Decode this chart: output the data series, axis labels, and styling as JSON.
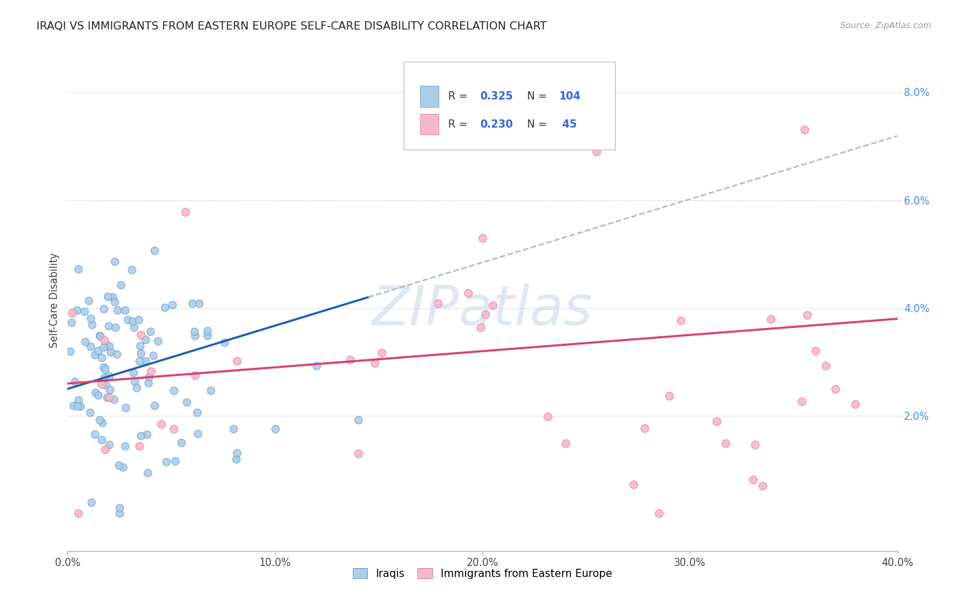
{
  "title": "IRAQI VS IMMIGRANTS FROM EASTERN EUROPE SELF-CARE DISABILITY CORRELATION CHART",
  "source": "Source: ZipAtlas.com",
  "ylabel": "Self-Care Disability",
  "xlim": [
    0,
    0.4
  ],
  "ylim": [
    -0.005,
    0.088
  ],
  "xtick_vals": [
    0.0,
    0.1,
    0.2,
    0.3,
    0.4
  ],
  "ytick_vals": [
    0.02,
    0.04,
    0.06,
    0.08
  ],
  "blue_color_edge": "#5b9bd5",
  "blue_color_face": "#aecce8",
  "pink_color_edge": "#e8789a",
  "pink_color_face": "#f4b8c8",
  "trendline_blue": "#1a5db5",
  "trendline_pink": "#d94070",
  "trendline_gray": "#b0b8c8",
  "watermark_color": "#ccd8ee",
  "background": "#ffffff",
  "grid_color": "#d8d8d8",
  "title_fontsize": 11.5,
  "tick_fontsize": 10.5,
  "ylabel_fontsize": 10.5,
  "seed": 7,
  "blue_N": 104,
  "pink_N": 45,
  "blue_line_x0": 0.0,
  "blue_line_x1": 0.145,
  "blue_line_y0": 0.025,
  "blue_line_y1": 0.042,
  "gray_line_x0": 0.145,
  "gray_line_x1": 0.4,
  "pink_line_x0": 0.0,
  "pink_line_x1": 0.4,
  "pink_line_y0": 0.026,
  "pink_line_y1": 0.038
}
